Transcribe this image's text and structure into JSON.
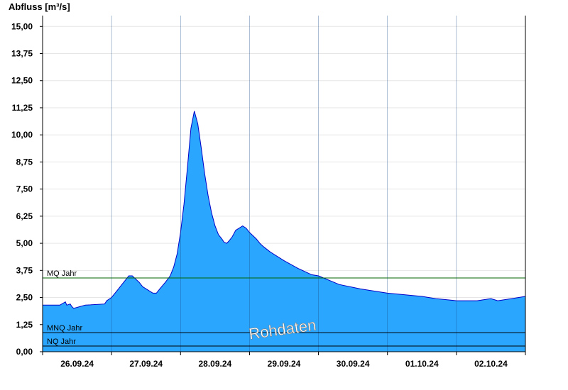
{
  "chart_data": {
    "type": "area",
    "ylabel": "Abfluss [m³/s]",
    "ylim": [
      0,
      15.5
    ],
    "y_ticks": [
      "0,00",
      "1,25",
      "2,50",
      "3,75",
      "5,00",
      "6,25",
      "7,50",
      "8,75",
      "10,00",
      "11,25",
      "12,50",
      "13,75",
      "15,00"
    ],
    "x_range": [
      0,
      7
    ],
    "x_ticks": [
      "26.09.24",
      "27.09.24",
      "28.09.24",
      "29.09.24",
      "30.09.24",
      "01.10.24",
      "02.10.24"
    ],
    "fill_color": "#2aa6ff",
    "line_color": "#0000c8",
    "mq_color": "#006400",
    "reference_lines": [
      {
        "label": "MQ Jahr",
        "value": 3.4
      },
      {
        "label": "MNQ Jahr",
        "value": 0.88
      },
      {
        "label": "NQ Jahr",
        "value": 0.26
      }
    ],
    "watermark": "Rohdaten",
    "series": [
      {
        "x": [
          0.0,
          0.25,
          0.33,
          0.35,
          0.4,
          0.42,
          0.45,
          0.62,
          0.9,
          0.93,
          1.0,
          1.05,
          1.1,
          1.15,
          1.2,
          1.25,
          1.3,
          1.4,
          1.45,
          1.5,
          1.55,
          1.6,
          1.65,
          1.7,
          1.78,
          1.85,
          1.9,
          1.95,
          2.0,
          2.05,
          2.1,
          2.15,
          2.2,
          2.25,
          2.3,
          2.35,
          2.4,
          2.45,
          2.5,
          2.55,
          2.6,
          2.63,
          2.67,
          2.7,
          2.75,
          2.8,
          2.85,
          2.9,
          2.95,
          3.0,
          3.05,
          3.1,
          3.15,
          3.2,
          3.3,
          3.5,
          3.7,
          3.9,
          4.0,
          4.3,
          4.6,
          5.0,
          5.5,
          5.7,
          6.0,
          6.3,
          6.5,
          6.6,
          6.8,
          7.0
        ],
        "values": [
          2.15,
          2.15,
          2.3,
          2.15,
          2.2,
          2.1,
          2.0,
          2.15,
          2.2,
          2.35,
          2.5,
          2.7,
          2.9,
          3.1,
          3.3,
          3.5,
          3.5,
          3.2,
          3.0,
          2.9,
          2.8,
          2.7,
          2.7,
          2.9,
          3.2,
          3.5,
          3.9,
          4.5,
          5.5,
          6.8,
          8.5,
          10.3,
          11.1,
          10.5,
          9.4,
          8.2,
          7.2,
          6.4,
          5.8,
          5.4,
          5.2,
          5.05,
          5.0,
          5.1,
          5.3,
          5.6,
          5.7,
          5.8,
          5.7,
          5.5,
          5.35,
          5.2,
          5.0,
          4.85,
          4.6,
          4.2,
          3.85,
          3.55,
          3.5,
          3.1,
          2.9,
          2.7,
          2.55,
          2.45,
          2.35,
          2.35,
          2.45,
          2.35,
          2.45,
          2.55
        ]
      }
    ]
  }
}
